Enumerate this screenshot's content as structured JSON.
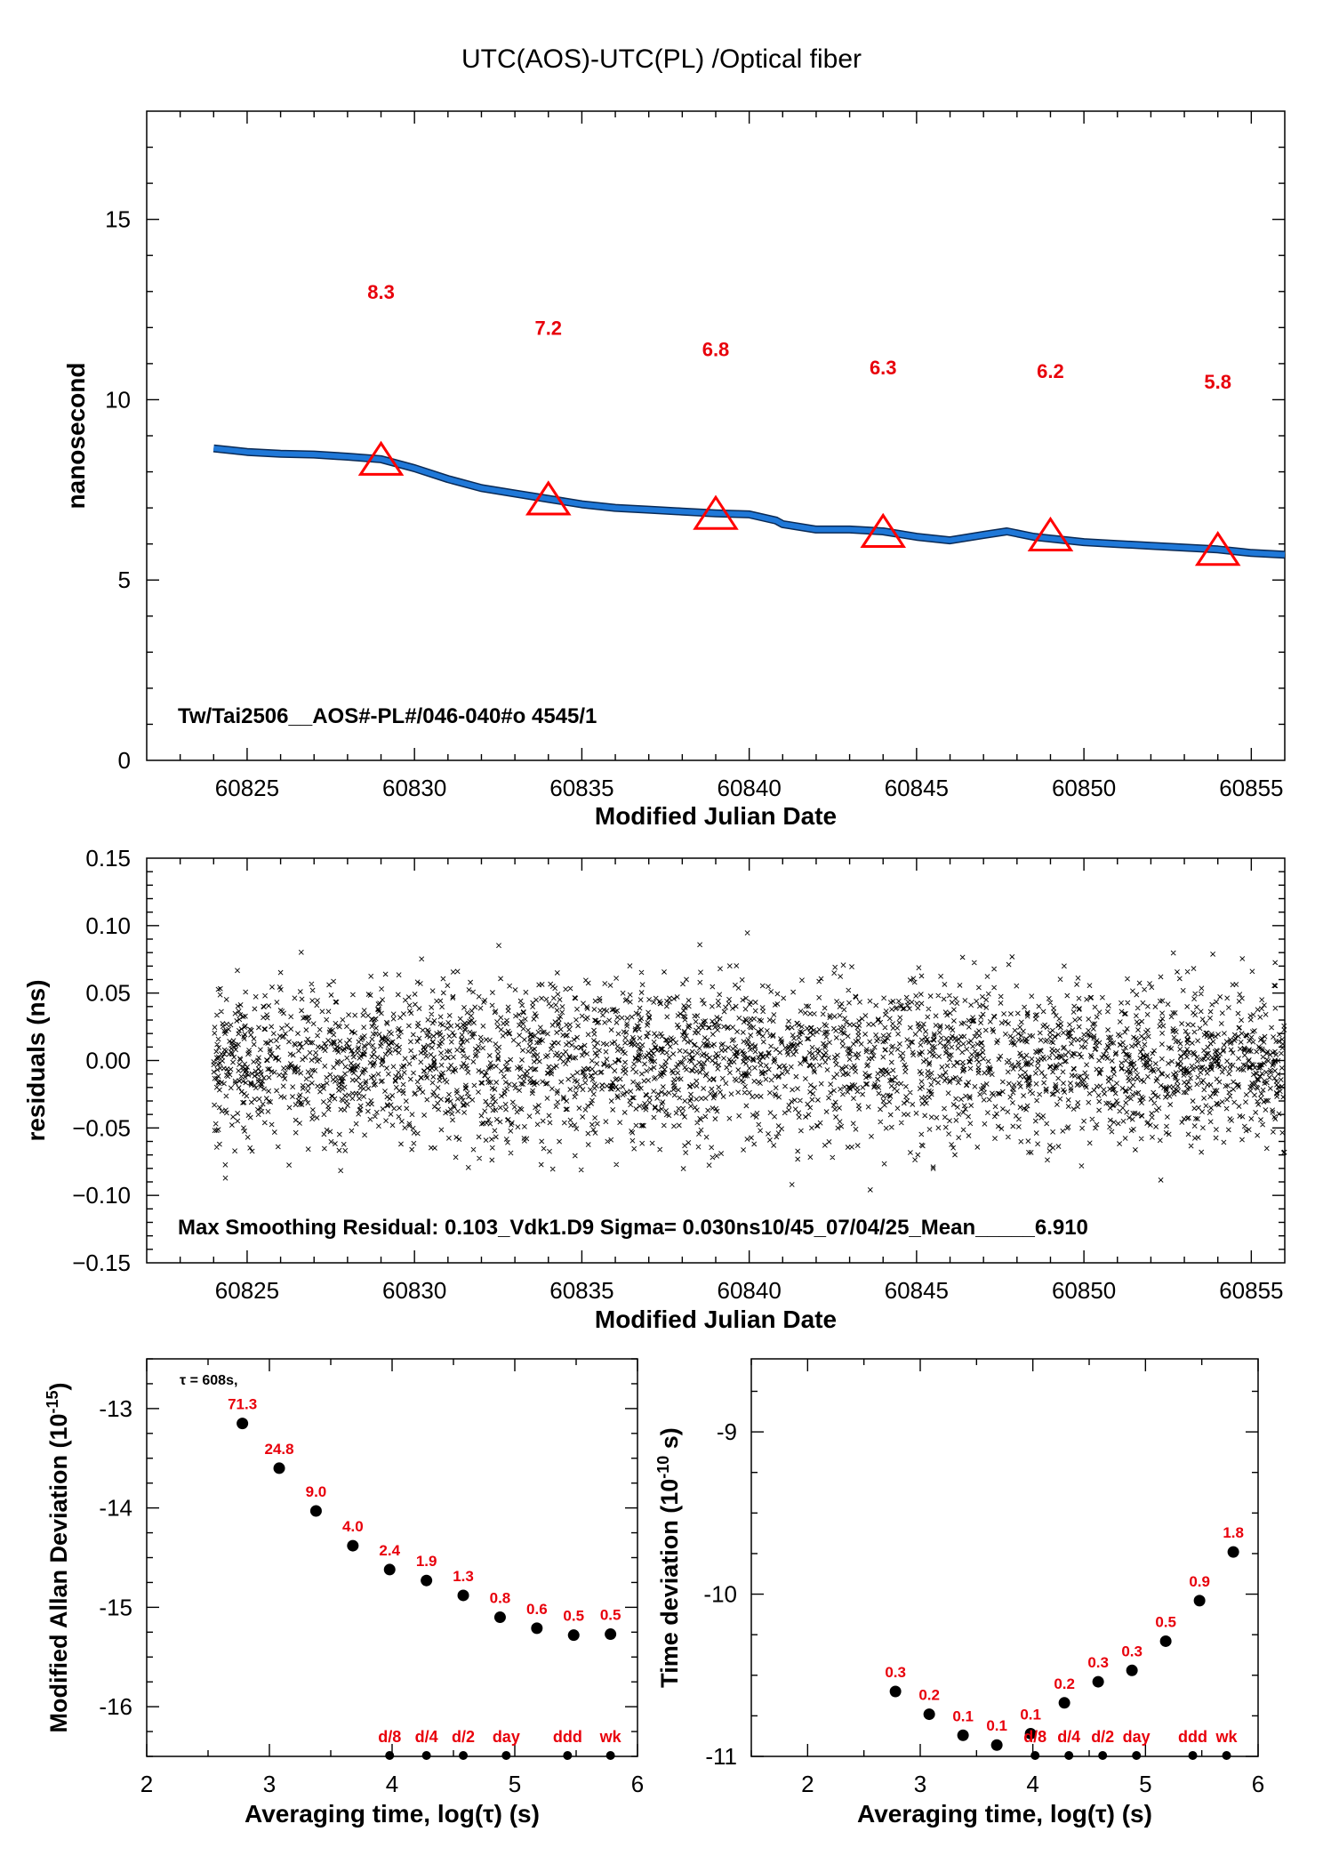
{
  "page_title": "UTC(AOS)-UTC(PL)  /Optical  fiber",
  "colors": {
    "series": "#1f78d8",
    "marker": "#ff0000",
    "annot": "#e8000b",
    "axis": "#000000"
  },
  "chart_data": [
    {
      "type": "line",
      "panel": "top",
      "xlabel": "Modified Julian Date",
      "ylabel": "nanosecond",
      "xlim": [
        60822,
        60856
      ],
      "ylim": [
        0,
        18
      ],
      "xticks": [
        60825,
        60830,
        60835,
        60840,
        60845,
        60850,
        60855
      ],
      "yticks": [
        0,
        5,
        10,
        15
      ],
      "series_line": {
        "x": [
          60824,
          60825,
          60826,
          60827,
          60828,
          60829,
          60830,
          60831,
          60832,
          60833,
          60834,
          60835,
          60836,
          60837,
          60838,
          60839,
          60840,
          60840.8,
          60841,
          60842,
          60843,
          60844,
          60845,
          60846,
          60847,
          60847.7,
          60848.5,
          60849,
          60850,
          60851,
          60852,
          60853,
          60854,
          60855,
          60856
        ],
        "y": [
          8.65,
          8.55,
          8.5,
          8.48,
          8.42,
          8.35,
          8.1,
          7.8,
          7.55,
          7.4,
          7.25,
          7.1,
          7.0,
          6.95,
          6.9,
          6.85,
          6.82,
          6.65,
          6.55,
          6.4,
          6.4,
          6.35,
          6.2,
          6.1,
          6.25,
          6.35,
          6.2,
          6.15,
          6.05,
          6.0,
          5.95,
          5.9,
          5.85,
          5.75,
          5.7
        ]
      },
      "markers": {
        "x": [
          60829,
          60834,
          60839,
          60844,
          60849,
          60854
        ],
        "y": [
          8.3,
          7.2,
          6.8,
          6.3,
          6.2,
          5.8
        ],
        "labels": [
          "8.3",
          "7.2",
          "6.8",
          "6.3",
          "6.2",
          "5.8"
        ],
        "label_y": [
          13.0,
          12.0,
          11.4,
          10.9,
          10.8,
          10.5
        ]
      },
      "annotation": "Tw/Tai2506__AOS#-PL#/046-040#o  4545/1"
    },
    {
      "type": "scatter",
      "panel": "middle",
      "xlabel": "Modified Julian Date",
      "ylabel": "residuals (ns)",
      "xlim": [
        60822,
        60856
      ],
      "ylim": [
        -0.15,
        0.15
      ],
      "xticks": [
        60825,
        60830,
        60835,
        60840,
        60845,
        60850,
        60855
      ],
      "yticks": [
        -0.15,
        -0.1,
        -0.05,
        0.0,
        0.05,
        0.1,
        0.15
      ],
      "ytick_labels": [
        "−0.15",
        "−0.10",
        "−0.05",
        "0.00",
        "0.05",
        "0.10",
        "0.15"
      ],
      "x_range": [
        60824,
        60856
      ],
      "point_count": 3400,
      "sigma": 0.03,
      "max_abs": 0.103,
      "annotation": "Max Smoothing Residual: 0.103_Vdk1.D9  Sigma= 0.030ns10/45_07/04/25_Mean_____6.910"
    },
    {
      "type": "scatter",
      "panel": "bottom-left",
      "xlabel": "Averaging time, log(τ) (s)",
      "ylabel": "Modified Allan Deviation (10",
      "ylabel_exp": "-15",
      "xlim": [
        2,
        6
      ],
      "ylim": [
        -16.5,
        -12.5
      ],
      "xticks": [
        2,
        3,
        4,
        5,
        6
      ],
      "yticks": [
        -16,
        -15,
        -14,
        -13
      ],
      "tau_note": "τ = 608s,",
      "x": [
        2.78,
        3.08,
        3.38,
        3.68,
        3.98,
        4.28,
        4.58,
        4.88,
        5.18,
        5.48,
        5.78
      ],
      "y": [
        -13.15,
        -13.6,
        -14.03,
        -14.38,
        -14.62,
        -14.73,
        -14.88,
        -15.1,
        -15.21,
        -15.28,
        -15.27
      ],
      "labels": [
        "71.3",
        "24.8",
        "9.0",
        "4.0",
        "2.4",
        "1.9",
        "1.3",
        "0.8",
        "0.6",
        "0.5",
        "0.5"
      ],
      "period_marks": {
        "x": [
          3.98,
          4.28,
          4.58,
          4.93,
          5.43,
          5.78
        ],
        "labels": [
          "d/8",
          "d/4",
          "d/2",
          "day",
          "ddd",
          "wk"
        ]
      }
    },
    {
      "type": "scatter",
      "panel": "bottom-right",
      "xlabel": "Averaging time, log(τ) (s)",
      "ylabel": "Time deviation (10",
      "ylabel_exp": "-10",
      "ylabel_tail": " s)",
      "xlim": [
        1.5,
        6
      ],
      "ylim": [
        -11,
        -8.55
      ],
      "xticks": [
        2,
        3,
        4,
        5,
        6
      ],
      "yticks": [
        -11,
        -10,
        -9
      ],
      "x": [
        2.78,
        3.08,
        3.38,
        3.68,
        3.98,
        4.28,
        4.58,
        4.88,
        5.18,
        5.48,
        5.78
      ],
      "y": [
        -10.6,
        -10.74,
        -10.87,
        -10.93,
        -10.86,
        -10.67,
        -10.54,
        -10.47,
        -10.29,
        -10.04,
        -9.74
      ],
      "labels": [
        "0.3",
        "0.2",
        "0.1",
        "0.1",
        "0.1",
        "0.2",
        "0.3",
        "0.3",
        "0.5",
        "0.9",
        "1.8"
      ],
      "period_marks": {
        "x": [
          4.02,
          4.32,
          4.62,
          4.92,
          5.42,
          5.72
        ],
        "labels": [
          "d/8",
          "d/4",
          "d/2",
          "day",
          "ddd",
          "wk"
        ]
      }
    }
  ]
}
